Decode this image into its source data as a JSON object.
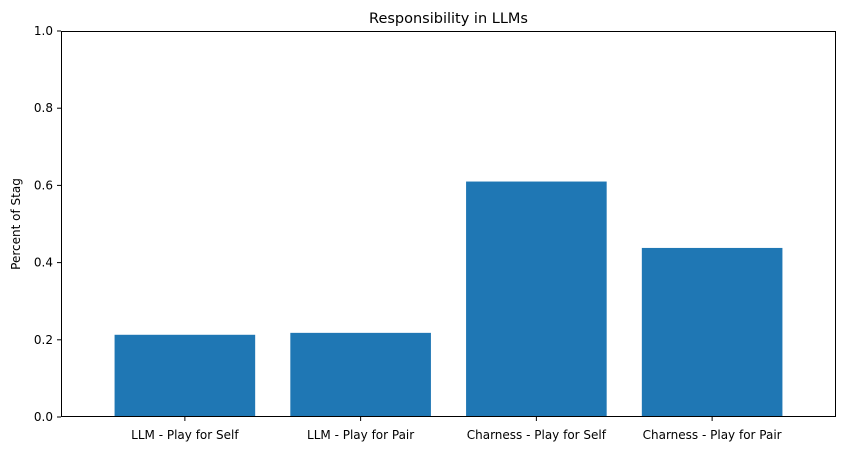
{
  "chart_data": {
    "type": "bar",
    "title": "Responsibility in LLMs",
    "xlabel": "",
    "ylabel": "Percent of Stag",
    "categories": [
      "LLM - Play for Self",
      "LLM - Play for Pair",
      "Charness - Play for Self",
      "Charness - Play for Pair"
    ],
    "values": [
      0.213,
      0.218,
      0.61,
      0.438
    ],
    "ylim": [
      0,
      1
    ],
    "yticks": [
      0.0,
      0.2,
      0.4,
      0.6,
      0.8,
      1.0
    ],
    "ytick_labels": [
      "0.0",
      "0.2",
      "0.4",
      "0.6",
      "0.8",
      "1.0"
    ],
    "grid": false,
    "bar_color": "#1f77b4"
  }
}
